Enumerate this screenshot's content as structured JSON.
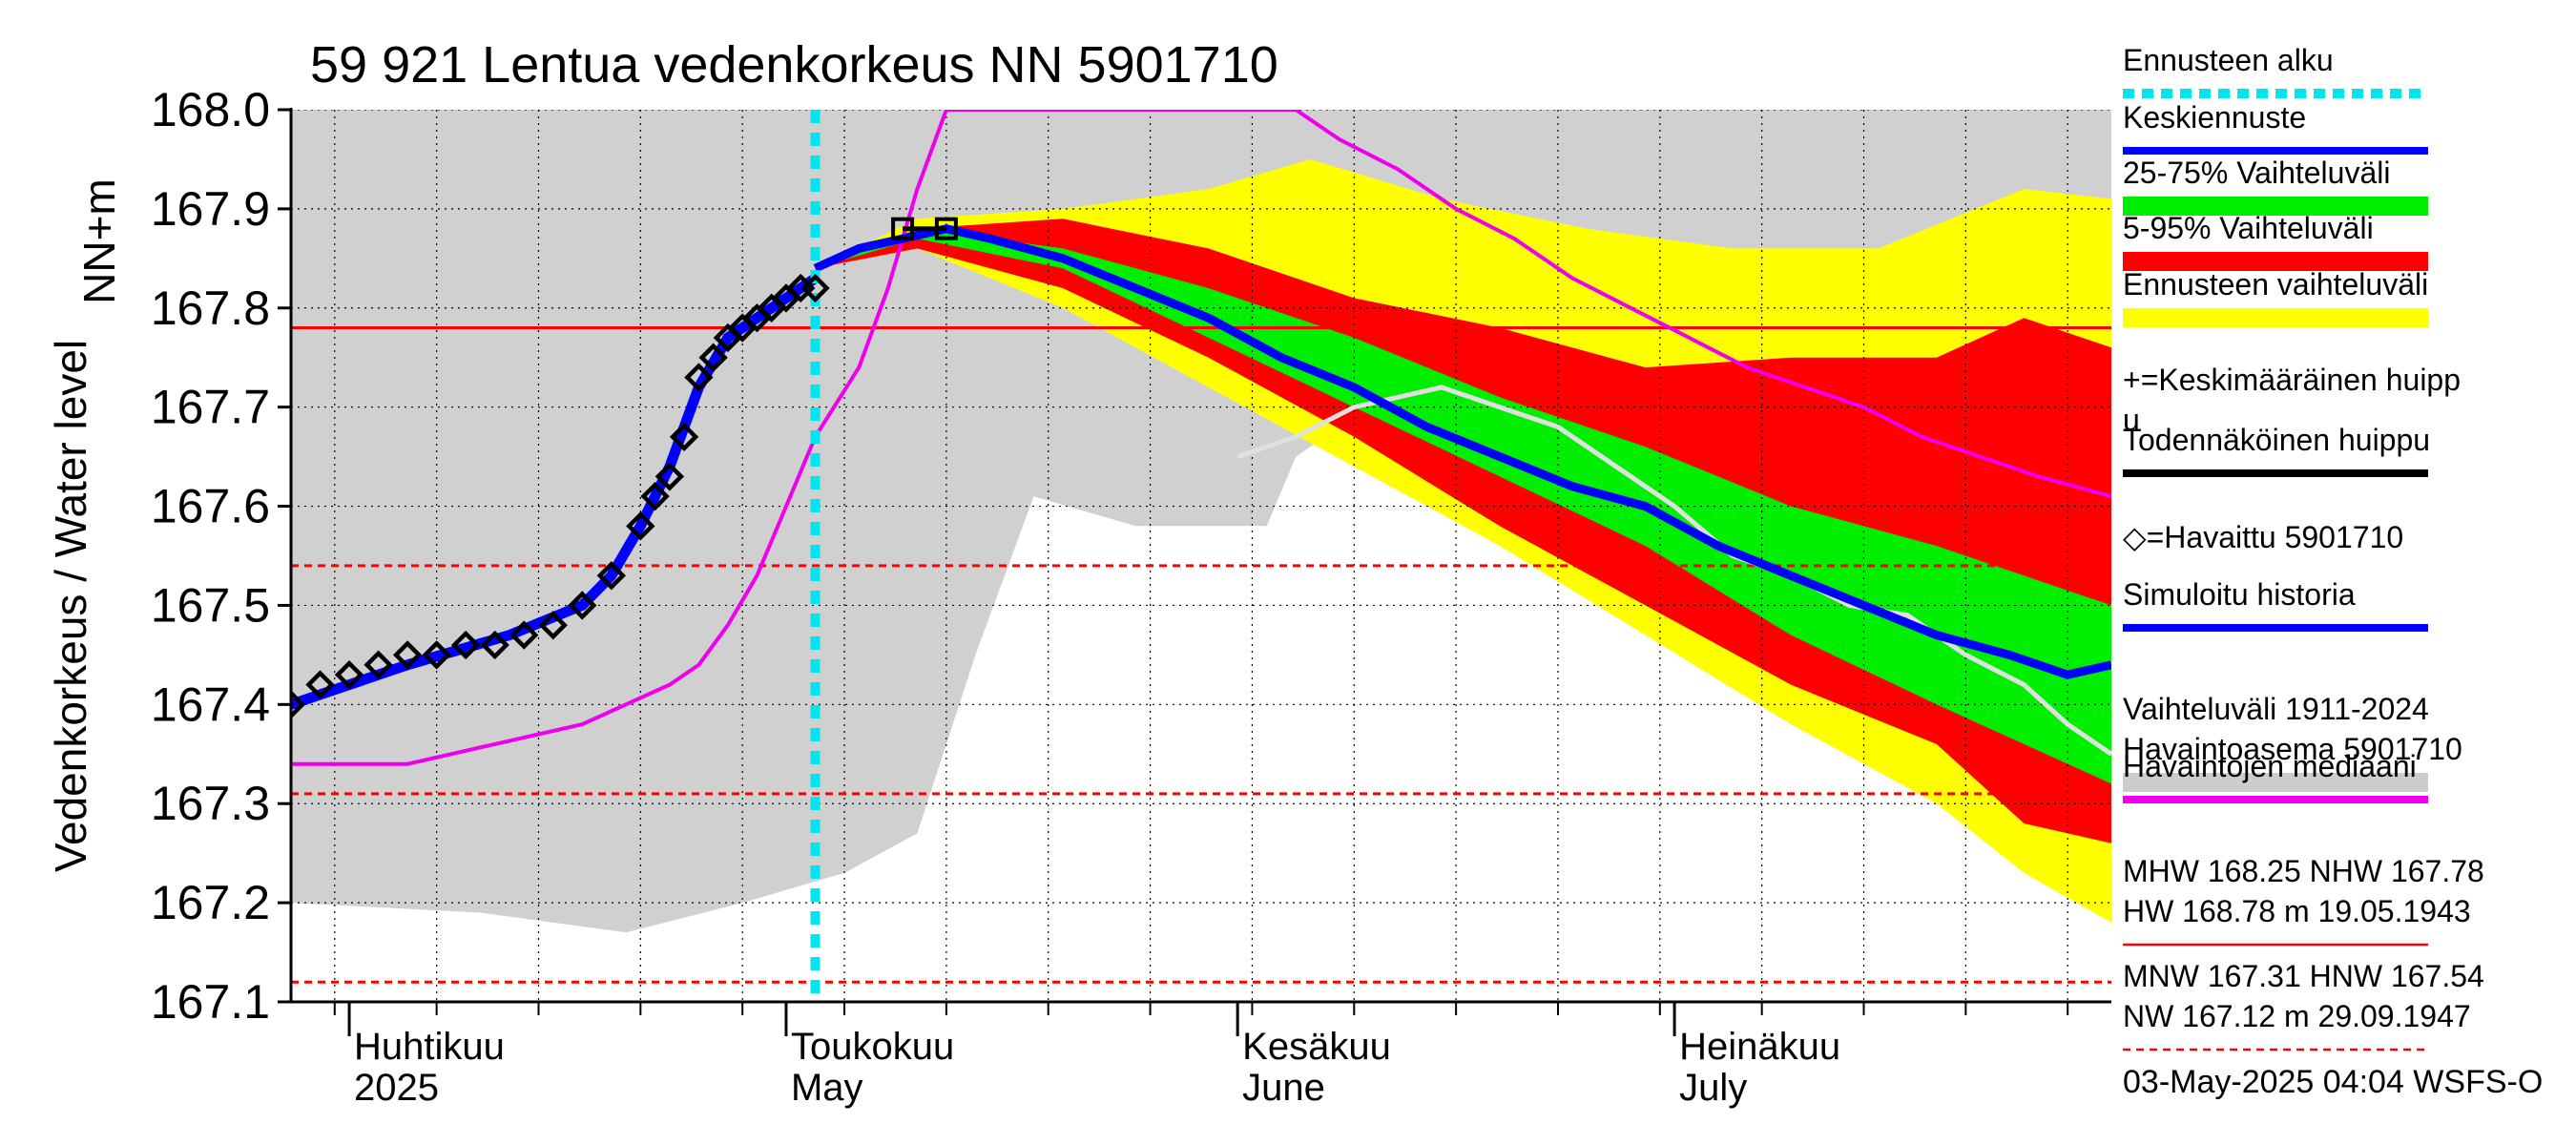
{
  "chart_data": {
    "type": "line",
    "title": "59 921 Lentua vedenkorkeus NN 5901710",
    "ylabel": "Vedenkorkeus / Water level",
    "ylabel_unit": "NN+m",
    "ylim": [
      167.1,
      168.0
    ],
    "y_ticks": [
      "168.0",
      "167.9",
      "167.8",
      "167.7",
      "167.6",
      "167.5",
      "167.4",
      "167.3",
      "167.2",
      "167.1"
    ],
    "x_range": [
      "2025-03-28",
      "2025-07-31"
    ],
    "month_labels": [
      {
        "date": "2025-04-01",
        "fi": "Huhtikuu",
        "en": "2025"
      },
      {
        "date": "2025-05-01",
        "fi": "Toukokuu",
        "en": "May"
      },
      {
        "date": "2025-06-01",
        "fi": "Kesäkuu",
        "en": "June"
      },
      {
        "date": "2025-07-01",
        "fi": "Heinäkuu",
        "en": "July"
      }
    ],
    "forecast_start": "2025-05-03",
    "reference_lines": [
      {
        "name": "NHW",
        "value": 167.78,
        "style": "solid",
        "color": "#ff0000"
      },
      {
        "name": "HNW",
        "value": 167.54,
        "style": "dashed",
        "color": "#ff0000"
      },
      {
        "name": "MNW",
        "value": 167.31,
        "style": "dashed",
        "color": "#ff0000"
      },
      {
        "name": "NW",
        "value": 167.12,
        "style": "dashed",
        "color": "#ff0000"
      }
    ],
    "observed": [
      [
        "2025-03-28",
        167.4
      ],
      [
        "2025-03-30",
        167.42
      ],
      [
        "2025-04-01",
        167.43
      ],
      [
        "2025-04-03",
        167.44
      ],
      [
        "2025-04-05",
        167.45
      ],
      [
        "2025-04-07",
        167.45
      ],
      [
        "2025-04-09",
        167.46
      ],
      [
        "2025-04-11",
        167.46
      ],
      [
        "2025-04-13",
        167.47
      ],
      [
        "2025-04-15",
        167.48
      ],
      [
        "2025-04-17",
        167.5
      ],
      [
        "2025-04-19",
        167.53
      ],
      [
        "2025-04-21",
        167.58
      ],
      [
        "2025-04-22",
        167.61
      ],
      [
        "2025-04-23",
        167.63
      ],
      [
        "2025-04-24",
        167.67
      ],
      [
        "2025-04-25",
        167.73
      ],
      [
        "2025-04-26",
        167.75
      ],
      [
        "2025-04-27",
        167.77
      ],
      [
        "2025-04-28",
        167.78
      ],
      [
        "2025-04-29",
        167.79
      ],
      [
        "2025-04-30",
        167.8
      ],
      [
        "2025-05-01",
        167.81
      ],
      [
        "2025-05-02",
        167.82
      ],
      [
        "2025-05-03",
        167.82
      ]
    ],
    "simulated_history": [
      [
        "2025-03-28",
        167.4
      ],
      [
        "2025-04-05",
        167.44
      ],
      [
        "2025-04-12",
        167.47
      ],
      [
        "2025-04-17",
        167.5
      ],
      [
        "2025-04-19",
        167.53
      ],
      [
        "2025-04-21",
        167.58
      ],
      [
        "2025-04-23",
        167.64
      ],
      [
        "2025-04-25",
        167.72
      ],
      [
        "2025-04-27",
        167.77
      ],
      [
        "2025-04-30",
        167.8
      ],
      [
        "2025-05-03",
        167.83
      ]
    ],
    "mean_forecast": [
      [
        "2025-05-03",
        167.84
      ],
      [
        "2025-05-06",
        167.86
      ],
      [
        "2025-05-09",
        167.87
      ],
      [
        "2025-05-12",
        167.88
      ],
      [
        "2025-05-15",
        167.87
      ],
      [
        "2025-05-20",
        167.85
      ],
      [
        "2025-05-25",
        167.82
      ],
      [
        "2025-05-30",
        167.79
      ],
      [
        "2025-06-04",
        167.75
      ],
      [
        "2025-06-09",
        167.72
      ],
      [
        "2025-06-14",
        167.68
      ],
      [
        "2025-06-19",
        167.65
      ],
      [
        "2025-06-24",
        167.62
      ],
      [
        "2025-06-29",
        167.6
      ],
      [
        "2025-07-04",
        167.56
      ],
      [
        "2025-07-09",
        167.53
      ],
      [
        "2025-07-14",
        167.5
      ],
      [
        "2025-07-19",
        167.47
      ],
      [
        "2025-07-24",
        167.45
      ],
      [
        "2025-07-28",
        167.43
      ],
      [
        "2025-07-31",
        167.44
      ]
    ],
    "probable_peak": [
      [
        "2025-05-09",
        167.88
      ],
      [
        "2025-05-12",
        167.88
      ]
    ],
    "median_observations": [
      [
        "2025-03-28",
        167.34
      ],
      [
        "2025-04-02",
        167.34
      ],
      [
        "2025-04-05",
        167.34
      ],
      [
        "2025-04-08",
        167.35
      ],
      [
        "2025-04-11",
        167.36
      ],
      [
        "2025-04-14",
        167.37
      ],
      [
        "2025-04-17",
        167.38
      ],
      [
        "2025-04-20",
        167.4
      ],
      [
        "2025-04-23",
        167.42
      ],
      [
        "2025-04-25",
        167.44
      ],
      [
        "2025-04-27",
        167.48
      ],
      [
        "2025-04-29",
        167.53
      ],
      [
        "2025-05-01",
        167.6
      ],
      [
        "2025-05-03",
        167.67
      ],
      [
        "2025-05-06",
        167.74
      ],
      [
        "2025-05-08",
        167.82
      ],
      [
        "2025-05-10",
        167.92
      ],
      [
        "2025-05-12",
        168.0
      ],
      [
        "2025-06-05",
        168.0
      ],
      [
        "2025-06-08",
        167.97
      ],
      [
        "2025-06-12",
        167.94
      ],
      [
        "2025-06-16",
        167.9
      ],
      [
        "2025-06-20",
        167.87
      ],
      [
        "2025-06-24",
        167.83
      ],
      [
        "2025-06-28",
        167.8
      ],
      [
        "2025-07-02",
        167.77
      ],
      [
        "2025-07-06",
        167.74
      ],
      [
        "2025-07-10",
        167.72
      ],
      [
        "2025-07-14",
        167.7
      ],
      [
        "2025-07-18",
        167.67
      ],
      [
        "2025-07-22",
        167.65
      ],
      [
        "2025-07-26",
        167.63
      ],
      [
        "2025-07-31",
        167.61
      ]
    ],
    "station_history": [
      [
        "2025-06-01",
        167.65
      ],
      [
        "2025-06-05",
        167.67
      ],
      [
        "2025-06-09",
        167.7
      ],
      [
        "2025-06-12",
        167.71
      ],
      [
        "2025-06-15",
        167.72
      ],
      [
        "2025-06-19",
        167.7
      ],
      [
        "2025-06-23",
        167.68
      ],
      [
        "2025-06-27",
        167.64
      ],
      [
        "2025-07-01",
        167.6
      ],
      [
        "2025-07-05",
        167.55
      ],
      [
        "2025-07-09",
        167.53
      ],
      [
        "2025-07-13",
        167.5
      ],
      [
        "2025-07-17",
        167.49
      ],
      [
        "2025-07-21",
        167.45
      ],
      [
        "2025-07-25",
        167.42
      ],
      [
        "2025-07-28",
        167.38
      ],
      [
        "2025-07-31",
        167.35
      ]
    ],
    "band_historical_range": {
      "upper": [
        [
          "2025-03-28",
          168.0
        ],
        [
          "2025-07-31",
          168.0
        ]
      ],
      "lower": [
        [
          "2025-03-28",
          167.2
        ],
        [
          "2025-04-10",
          167.19
        ],
        [
          "2025-04-20",
          167.17
        ],
        [
          "2025-04-28",
          167.2
        ],
        [
          "2025-05-05",
          167.23
        ],
        [
          "2025-05-10",
          167.27
        ],
        [
          "2025-05-14",
          167.45
        ],
        [
          "2025-05-18",
          167.61
        ],
        [
          "2025-05-25",
          167.58
        ],
        [
          "2025-06-03",
          167.58
        ],
        [
          "2025-06-05",
          167.65
        ],
        [
          "2025-06-12",
          167.72
        ],
        [
          "2025-06-25",
          167.72
        ],
        [
          "2025-07-05",
          167.78
        ],
        [
          "2025-07-15",
          167.8
        ],
        [
          "2025-07-25",
          167.82
        ],
        [
          "2025-07-31",
          167.82
        ]
      ]
    },
    "band_forecast_range": {
      "upper": [
        [
          "2025-05-03",
          167.84
        ],
        [
          "2025-05-10",
          167.89
        ],
        [
          "2025-05-20",
          167.9
        ],
        [
          "2025-05-30",
          167.92
        ],
        [
          "2025-06-06",
          167.95
        ],
        [
          "2025-06-15",
          167.91
        ],
        [
          "2025-06-25",
          167.88
        ],
        [
          "2025-07-05",
          167.86
        ],
        [
          "2025-07-15",
          167.86
        ],
        [
          "2025-07-25",
          167.92
        ],
        [
          "2025-07-31",
          167.91
        ]
      ],
      "lower": [
        [
          "2025-05-03",
          167.84
        ],
        [
          "2025-05-10",
          167.86
        ],
        [
          "2025-05-20",
          167.8
        ],
        [
          "2025-05-30",
          167.72
        ],
        [
          "2025-06-09",
          167.64
        ],
        [
          "2025-06-19",
          167.56
        ],
        [
          "2025-06-29",
          167.47
        ],
        [
          "2025-07-09",
          167.38
        ],
        [
          "2025-07-19",
          167.3
        ],
        [
          "2025-07-25",
          167.23
        ],
        [
          "2025-07-31",
          167.18
        ]
      ]
    },
    "band_5_95": {
      "upper": [
        [
          "2025-05-03",
          167.84
        ],
        [
          "2025-05-10",
          167.88
        ],
        [
          "2025-05-20",
          167.89
        ],
        [
          "2025-05-30",
          167.86
        ],
        [
          "2025-06-09",
          167.81
        ],
        [
          "2025-06-19",
          167.78
        ],
        [
          "2025-06-29",
          167.74
        ],
        [
          "2025-07-09",
          167.75
        ],
        [
          "2025-07-19",
          167.75
        ],
        [
          "2025-07-25",
          167.79
        ],
        [
          "2025-07-31",
          167.76
        ]
      ],
      "lower": [
        [
          "2025-05-03",
          167.84
        ],
        [
          "2025-05-10",
          167.86
        ],
        [
          "2025-05-20",
          167.82
        ],
        [
          "2025-05-30",
          167.75
        ],
        [
          "2025-06-09",
          167.67
        ],
        [
          "2025-06-19",
          167.58
        ],
        [
          "2025-06-29",
          167.5
        ],
        [
          "2025-07-09",
          167.42
        ],
        [
          "2025-07-19",
          167.36
        ],
        [
          "2025-07-25",
          167.28
        ],
        [
          "2025-07-31",
          167.26
        ]
      ]
    },
    "band_25_75": {
      "upper": [
        [
          "2025-05-03",
          167.84
        ],
        [
          "2025-05-10",
          167.88
        ],
        [
          "2025-05-20",
          167.86
        ],
        [
          "2025-05-30",
          167.82
        ],
        [
          "2025-06-09",
          167.77
        ],
        [
          "2025-06-19",
          167.71
        ],
        [
          "2025-06-29",
          167.66
        ],
        [
          "2025-07-09",
          167.6
        ],
        [
          "2025-07-19",
          167.56
        ],
        [
          "2025-07-25",
          167.53
        ],
        [
          "2025-07-31",
          167.5
        ]
      ],
      "lower": [
        [
          "2025-05-03",
          167.84
        ],
        [
          "2025-05-10",
          167.87
        ],
        [
          "2025-05-20",
          167.84
        ],
        [
          "2025-05-30",
          167.77
        ],
        [
          "2025-06-09",
          167.7
        ],
        [
          "2025-06-19",
          167.63
        ],
        [
          "2025-06-29",
          167.56
        ],
        [
          "2025-07-09",
          167.47
        ],
        [
          "2025-07-19",
          167.4
        ],
        [
          "2025-07-25",
          167.36
        ],
        [
          "2025-07-31",
          167.32
        ]
      ]
    },
    "legend": [
      {
        "label": "Ennusteen alku",
        "color": "#00e5ee",
        "style": "dotted"
      },
      {
        "label": "Keskiennuste",
        "color": "#0000ff",
        "style": "solid"
      },
      {
        "label": "25-75% Vaihteluväli",
        "color": "#00ee00",
        "style": "band"
      },
      {
        "label": "5-95% Vaihteluväli",
        "color": "#ff0000",
        "style": "band"
      },
      {
        "label": "Ennusteen vaihteluväli",
        "color": "#ffff00",
        "style": "band"
      },
      {
        "label": "+=Keskimääräinen huipp\nu",
        "color": "#000000",
        "style": "none"
      },
      {
        "label": "Todennäköinen huippu",
        "color": "#000000",
        "style": "solid"
      },
      {
        "label": "◇=Havaittu 5901710",
        "color": "#000000",
        "style": "none"
      },
      {
        "label": "Simuloitu historia",
        "color": "#0000ff",
        "style": "solid"
      },
      {
        "label": "Vaihteluväli 1911-2024\n Havaintoasema 5901710",
        "color": "#cccccc",
        "style": "band"
      },
      {
        "label": "Havaintojen mediaani",
        "color": "#ee00ee",
        "style": "solid"
      },
      {
        "label": "MHW 168.25 NHW 167.78\nHW 168.78 m 19.05.1943",
        "color": "#ff0000",
        "style": "solid"
      },
      {
        "label": "MNW 167.31 HNW 167.54\nNW 167.12 m 29.09.1947",
        "color": "#ff0000",
        "style": "dashed"
      }
    ],
    "footer": "03-May-2025 04:04 WSFS-O"
  }
}
